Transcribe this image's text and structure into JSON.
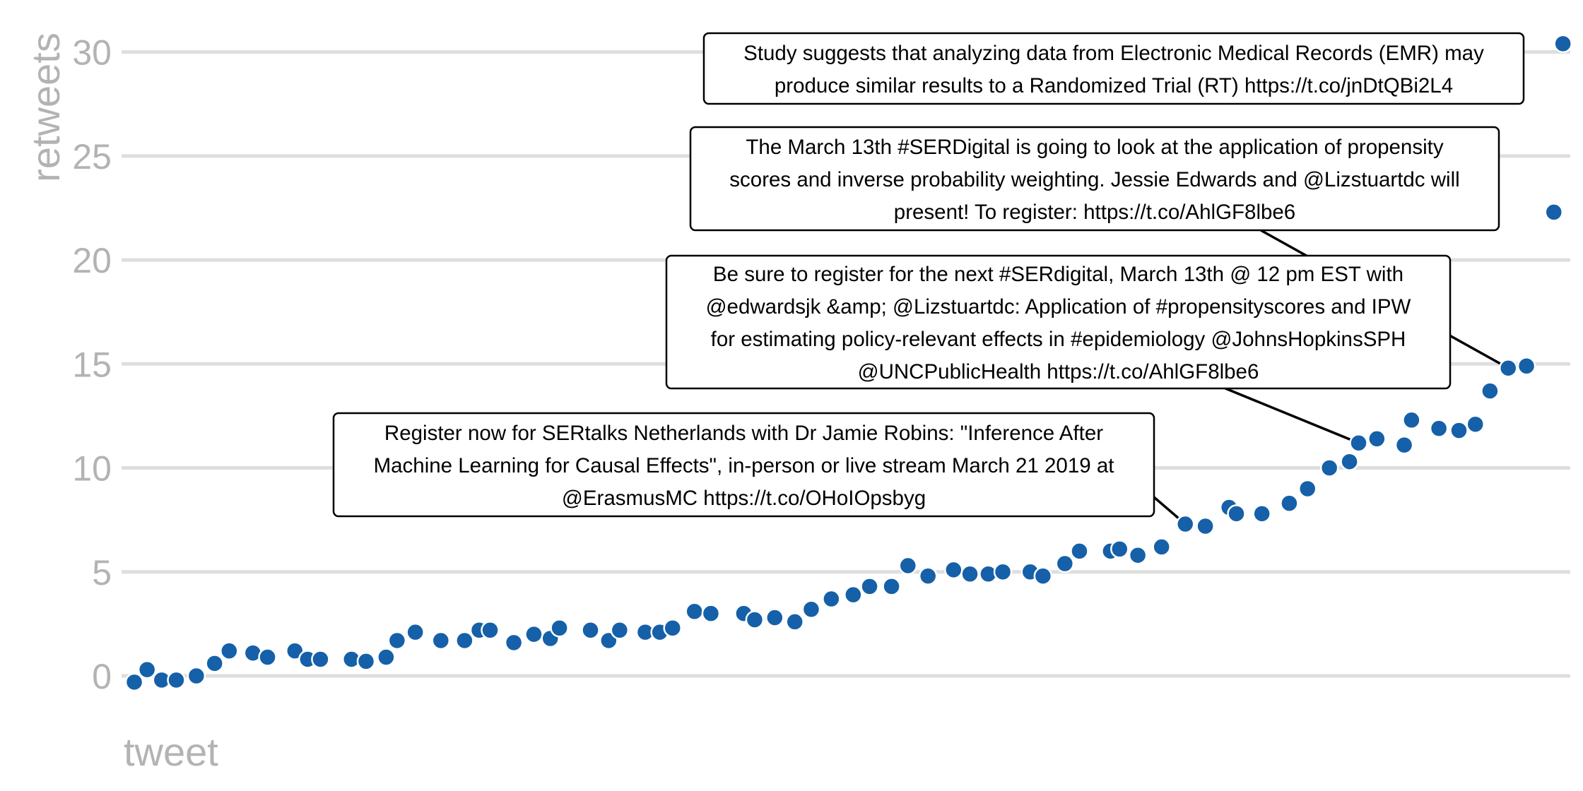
{
  "chart_data": {
    "type": "scatter",
    "title": "",
    "xlabel": "tweet",
    "ylabel": "retweets",
    "xlim": [
      0.3,
      79.7
    ],
    "ylim": [
      -1.8,
      32.5
    ],
    "yticks": [
      0,
      5,
      10,
      15,
      20,
      25,
      30
    ],
    "grid": "horizontal",
    "legend": "none",
    "colors": {
      "point": "#1560A8",
      "grid": "#dedede",
      "axis_text": "#b3b3b3"
    },
    "points": [
      [
        1,
        -0.3
      ],
      [
        1.7,
        0.3
      ],
      [
        2.5,
        -0.2
      ],
      [
        3.3,
        -0.2
      ],
      [
        4.4,
        0
      ],
      [
        5.4,
        0.6
      ],
      [
        6.2,
        1.2
      ],
      [
        7.5,
        1.1
      ],
      [
        8.3,
        0.9
      ],
      [
        9.8,
        1.2
      ],
      [
        10.5,
        0.8
      ],
      [
        11.2,
        0.8
      ],
      [
        12.9,
        0.8
      ],
      [
        13.7,
        0.7
      ],
      [
        14.8,
        0.9
      ],
      [
        15.4,
        1.7
      ],
      [
        16.4,
        2.1
      ],
      [
        17.8,
        1.7
      ],
      [
        19.1,
        1.7
      ],
      [
        19.9,
        2.2
      ],
      [
        20.5,
        2.2
      ],
      [
        21.8,
        1.6
      ],
      [
        22.9,
        2.0
      ],
      [
        23.8,
        1.8
      ],
      [
        24.3,
        2.3
      ],
      [
        26,
        2.2
      ],
      [
        27,
        1.7
      ],
      [
        27.6,
        2.2
      ],
      [
        29,
        2.1
      ],
      [
        29.8,
        2.1
      ],
      [
        30.5,
        2.3
      ],
      [
        31.7,
        3.1
      ],
      [
        32.6,
        3.0
      ],
      [
        34.4,
        3.0
      ],
      [
        35,
        2.7
      ],
      [
        36.1,
        2.8
      ],
      [
        37.2,
        2.6
      ],
      [
        38.1,
        3.2
      ],
      [
        39.2,
        3.7
      ],
      [
        40.4,
        3.9
      ],
      [
        41.3,
        4.3
      ],
      [
        42.5,
        4.3
      ],
      [
        43.4,
        5.3
      ],
      [
        44.5,
        4.8
      ],
      [
        45.9,
        5.1
      ],
      [
        46.8,
        4.9
      ],
      [
        47.8,
        4.9
      ],
      [
        48.6,
        5.0
      ],
      [
        50.1,
        5.0
      ],
      [
        50.8,
        4.8
      ],
      [
        52,
        5.4
      ],
      [
        52.8,
        6.0
      ],
      [
        54.5,
        6.0
      ],
      [
        55,
        6.1
      ],
      [
        56,
        5.8
      ],
      [
        57.3,
        6.2
      ],
      [
        58.6,
        7.3
      ],
      [
        59.7,
        7.2
      ],
      [
        61,
        8.1
      ],
      [
        61.4,
        7.8
      ],
      [
        62.8,
        7.8
      ],
      [
        64.3,
        8.3
      ],
      [
        65.3,
        9.0
      ],
      [
        66.5,
        10.0
      ],
      [
        67.6,
        10.3
      ],
      [
        68.1,
        11.2
      ],
      [
        69.1,
        11.4
      ],
      [
        70.6,
        11.1
      ],
      [
        71,
        12.3
      ],
      [
        72.5,
        11.9
      ],
      [
        73.6,
        11.8
      ],
      [
        74.5,
        12.1
      ],
      [
        75.3,
        13.7
      ],
      [
        76.3,
        14.8
      ],
      [
        77.3,
        14.9
      ],
      [
        78.8,
        22.3
      ],
      [
        79.3,
        30.4
      ]
    ],
    "annotations": [
      {
        "lines": [
          "Study suggests that analyzing data from Electronic Medical Records (EMR) may",
          "produce similar results to a Randomized Trial (RT) https://t.co/jnDtQBi2L4"
        ],
        "target": [
          79.3,
          30.4
        ]
      },
      {
        "lines": [
          "The March 13th #SERDigital is going to look at the application of propensity",
          "scores and inverse probability weighting. Jessie Edwards and @Lizstuartdc will",
          "present! To register: https://t.co/AhlGF8lbe6"
        ],
        "target": [
          76.3,
          14.8
        ]
      },
      {
        "lines": [
          "Be sure to register for the next #SERdigital, March 13th @ 12 pm EST with",
          "@edwardsjk &amp; @Lizstuartdc: Application of #propensityscores and IPW",
          "for estimating policy-relevant effects in #epidemiology @JohnsHopkinsSPH",
          "@UNCPublicHealth https://t.co/AhlGF8lbe6"
        ],
        "target": [
          68.1,
          11.2
        ]
      },
      {
        "lines": [
          "Register now for SERtalks Netherlands with Dr Jamie Robins: \"Inference After",
          "Machine Learning for Causal Effects\", in-person or live stream March 21 2019 at",
          "@ErasmusMC https://t.co/OHoIOpsbyg"
        ],
        "target": [
          58.6,
          7.3
        ]
      }
    ]
  }
}
